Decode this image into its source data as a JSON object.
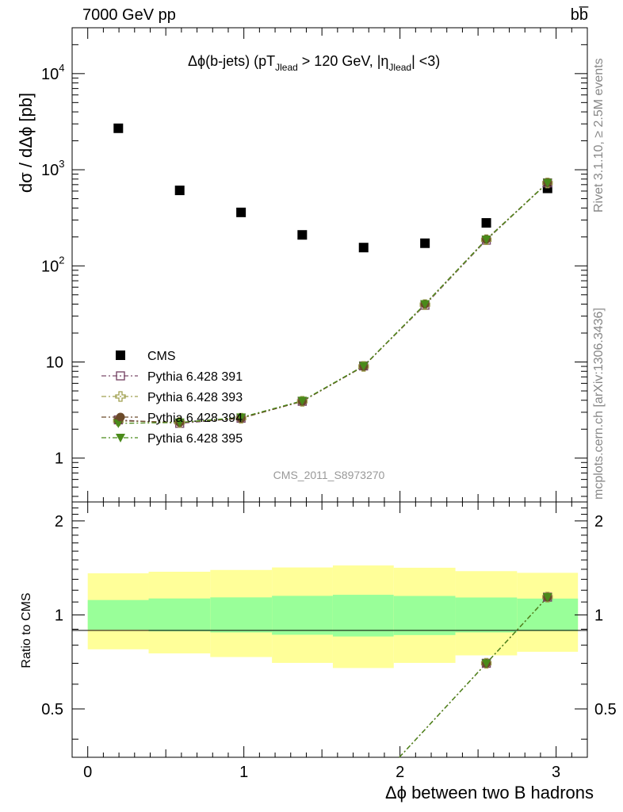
{
  "header": {
    "left": "7000 GeV pp",
    "right": "bb̅"
  },
  "side": {
    "rivet": "Rivet 3.1.10, ≥ 2.5M events",
    "mcplots": "mcplots.cern.ch [arXiv:1306.3436]"
  },
  "chart_data": {
    "type": "scatter",
    "title": "Δϕ(b-jets) (pT_Jlead > 120 GeV, |η_Jlead| <3)",
    "title_parts": {
      "pre": "Δϕ(b-jets) (pT",
      "sub1": "Jlead",
      "mid": " >  120 GeV, |η",
      "sub2": "Jlead",
      "post": "| <3)"
    },
    "ylabel": "dσ / dΔϕ [pb]",
    "xlabel": "Δϕ between two B hadrons",
    "ratio_ylabel": "Ratio to CMS",
    "watermark": "CMS_2011_S8973270",
    "xlim": [
      -0.1,
      3.2
    ],
    "ylim": [
      0.35,
      30000
    ],
    "yscale": "log",
    "ratio_ylim": [
      0.35,
      2.3
    ],
    "x_ticks": [
      "0",
      "1",
      "2",
      "3"
    ],
    "y_ticks": [
      "1",
      "10",
      "10^2",
      "10^3",
      "10^4"
    ],
    "ratio_ticks": [
      "0.5",
      "1",
      "2"
    ],
    "legend_position": "lower-left",
    "bins": [
      [
        0.0,
        0.39
      ],
      [
        0.39,
        0.785
      ],
      [
        0.785,
        1.18
      ],
      [
        1.18,
        1.57
      ],
      [
        1.57,
        1.96
      ],
      [
        1.96,
        2.355
      ],
      [
        2.355,
        2.75
      ],
      [
        2.75,
        3.14
      ]
    ],
    "x": [
      0.196,
      0.589,
      0.982,
      1.374,
      1.767,
      2.16,
      2.553,
      2.945
    ],
    "series": [
      {
        "name": "CMS",
        "marker": "filled-square",
        "color": "#000000",
        "values": [
          2700,
          610,
          360,
          210,
          155,
          172,
          280,
          640
        ]
      },
      {
        "name": "Pythia 6.428 391",
        "marker": "open-square",
        "color": "#7a4a6a",
        "values": [
          2.5,
          2.3,
          2.6,
          3.9,
          9.1,
          39,
          185,
          730
        ]
      },
      {
        "name": "Pythia 6.428 393",
        "marker": "open-cross",
        "color": "#a0a050",
        "values": [
          2.45,
          2.35,
          2.6,
          3.9,
          9.0,
          39.5,
          187,
          728
        ]
      },
      {
        "name": "Pythia 6.428 394",
        "marker": "filled-circle",
        "color": "#6b4a2a",
        "values": [
          2.45,
          2.35,
          2.6,
          3.9,
          9.0,
          40,
          189,
          735
        ]
      },
      {
        "name": "Pythia 6.428 395",
        "marker": "filled-triangle-down",
        "color": "#4a8a1a",
        "values": [
          2.3,
          2.35,
          2.65,
          3.95,
          9.1,
          40,
          188,
          731
        ]
      }
    ],
    "ratio_bands": {
      "inner_color": "#99ff99",
      "outer_color": "#ffff99",
      "inner": [
        [
          0.897,
          1.116
        ],
        [
          0.886,
          1.129
        ],
        [
          0.879,
          1.138
        ],
        [
          0.864,
          1.151
        ],
        [
          0.853,
          1.16
        ],
        [
          0.862,
          1.15
        ],
        [
          0.879,
          1.137
        ],
        [
          0.888,
          1.128
        ]
      ],
      "outer": [
        [
          0.776,
          1.359
        ],
        [
          0.753,
          1.375
        ],
        [
          0.733,
          1.393
        ],
        [
          0.702,
          1.419
        ],
        [
          0.676,
          1.44
        ],
        [
          0.702,
          1.416
        ],
        [
          0.742,
          1.381
        ],
        [
          0.762,
          1.364
        ]
      ]
    },
    "ratio_visible": [
      {
        "x": 2.553,
        "value": 0.7
      },
      {
        "x": 2.945,
        "value": 1.14
      }
    ]
  }
}
